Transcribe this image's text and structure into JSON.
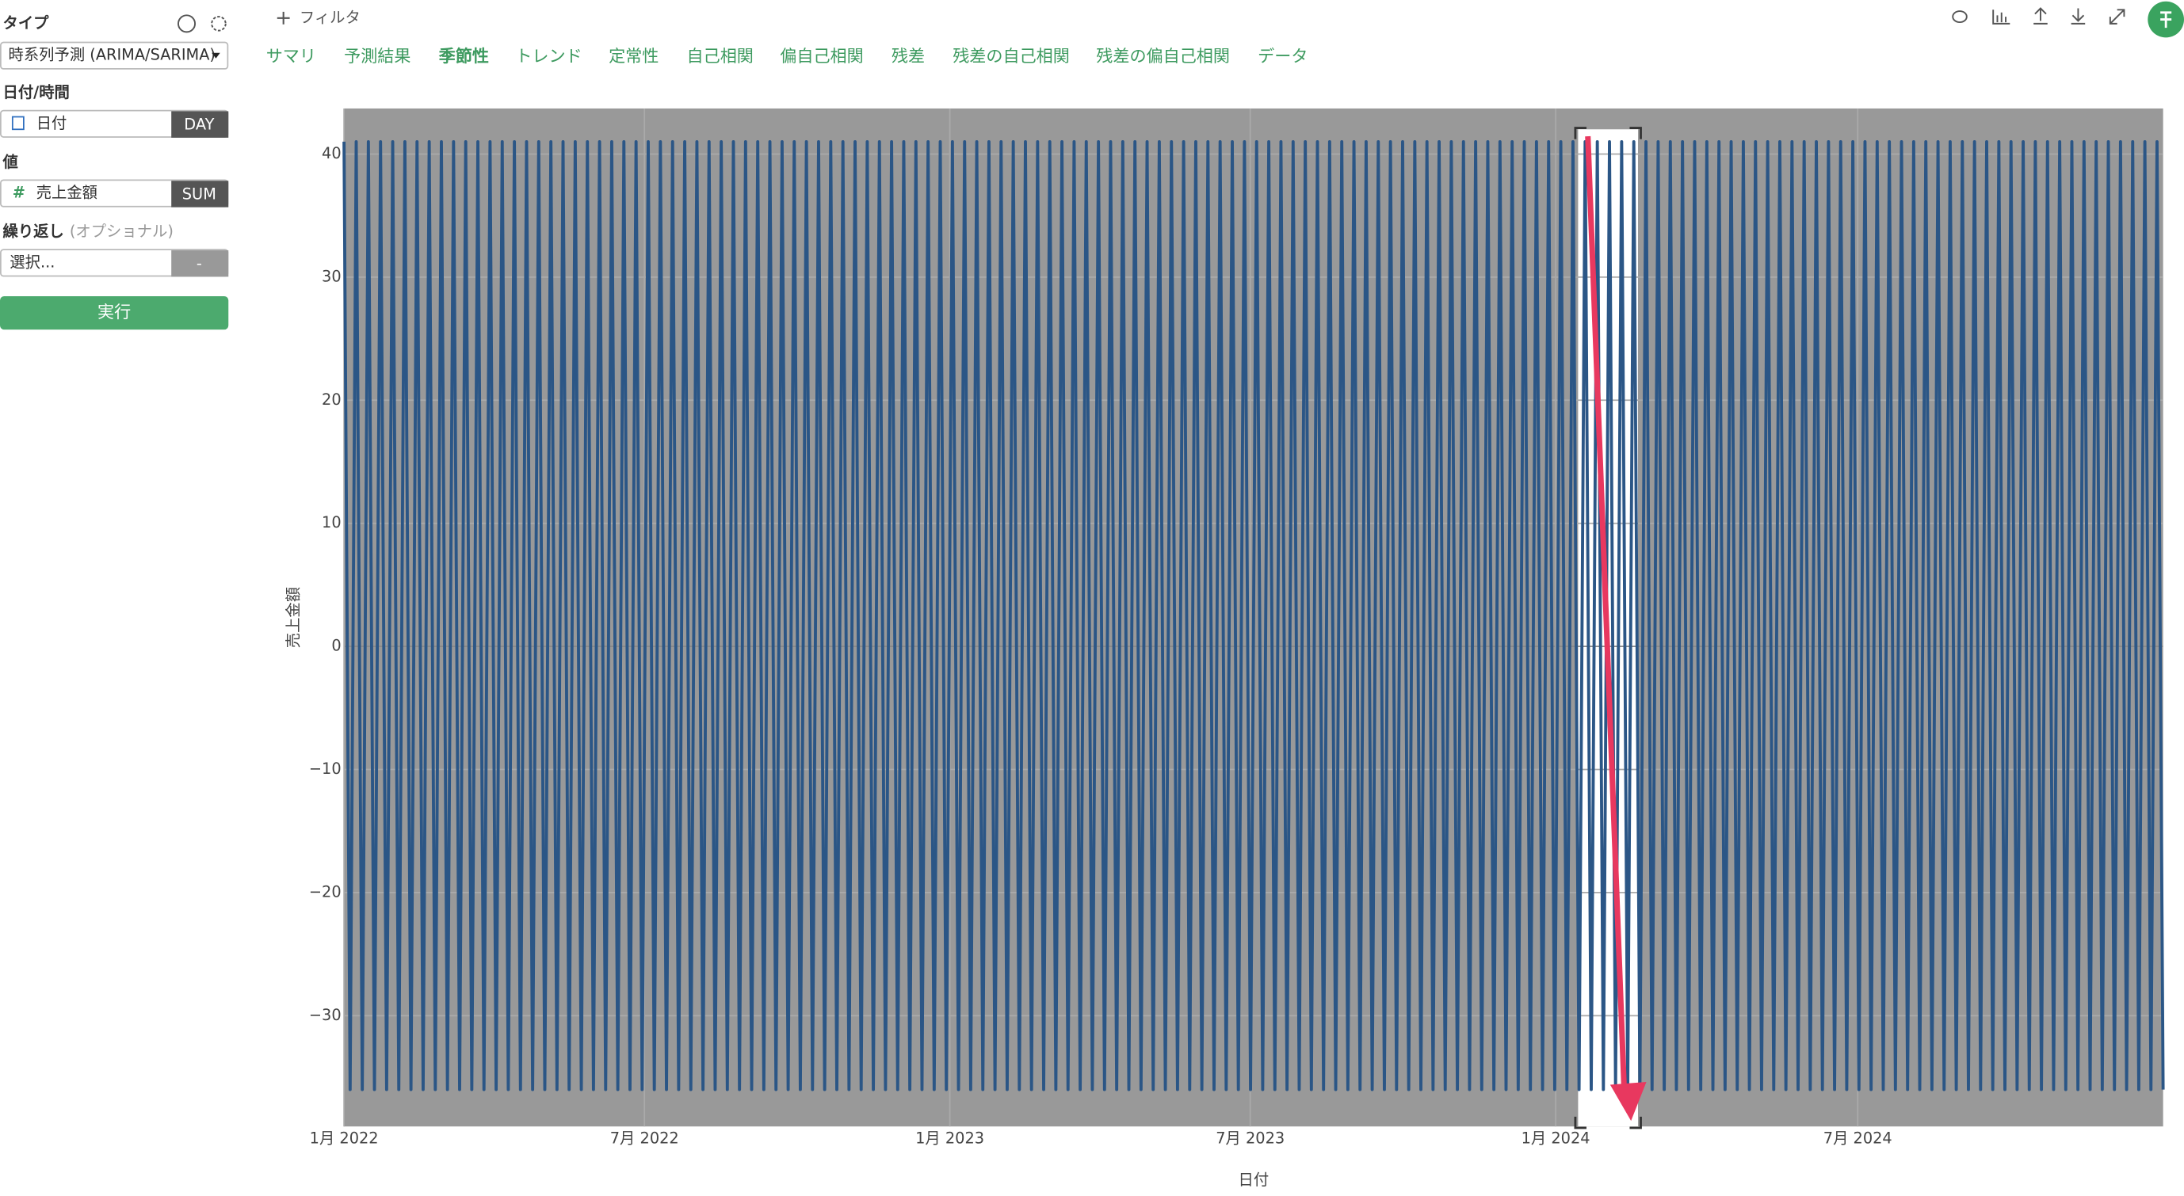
{
  "sidebar": {
    "type_label": "タイプ",
    "type_value": "時系列予測 (ARIMA/SARIMA)",
    "date_label": "日付/時間",
    "date_field": "日付",
    "date_agg": "DAY",
    "value_label": "値",
    "value_field": "売上金額",
    "value_agg": "SUM",
    "repeat_label": "繰り返し",
    "repeat_optional": "(オプショナル)",
    "repeat_placeholder": "選択...",
    "repeat_agg": "-",
    "run_button": "実行"
  },
  "toolbar": {
    "filter": "フィルタ"
  },
  "tabs": [
    "サマリ",
    "予測結果",
    "季節性",
    "トレンド",
    "定常性",
    "自己相関",
    "偏自己相関",
    "残差",
    "残差の自己相関",
    "残差の偏自己相関",
    "データ"
  ],
  "active_tab": 2,
  "chart_data": {
    "type": "line",
    "x_label": "日付",
    "y_label": "売上金額",
    "color": "#2b5686",
    "xlim": [
      "2022-01-01",
      "2025-01-01"
    ],
    "xticks": [
      {
        "value": "2022-01-01",
        "label": "1月 2022"
      },
      {
        "value": "2022-07-01",
        "label": "7月 2022"
      },
      {
        "value": "2023-01-01",
        "label": "1月 2023"
      },
      {
        "value": "2023-07-01",
        "label": "7月 2023"
      },
      {
        "value": "2024-01-01",
        "label": "1月 2024"
      },
      {
        "value": "2024-07-01",
        "label": "7月 2024"
      }
    ],
    "ylim": [
      -39,
      43.7
    ],
    "yticks": [
      {
        "value": -30,
        "label": "−30"
      },
      {
        "value": -20,
        "label": "−20"
      },
      {
        "value": -10,
        "label": "−10"
      },
      0,
      10,
      20,
      30,
      40
    ],
    "grid": true,
    "values": [
      41,
      -36,
      41,
      -36,
      41,
      -36,
      41,
      -36,
      41,
      -36,
      41,
      -36,
      41,
      -36,
      41,
      -36,
      41,
      -36,
      41,
      -36,
      41,
      -36,
      41,
      -36,
      41,
      -36,
      41,
      -36,
      41,
      -36,
      41,
      -36,
      41,
      -36,
      41,
      -36,
      41,
      -36,
      41,
      -36,
      41,
      -36,
      41,
      -36,
      41,
      -36,
      41,
      -36,
      41,
      -36,
      41,
      -36,
      41,
      -36,
      41,
      -36,
      41,
      -36,
      41,
      -36,
      41,
      -36,
      41,
      -36,
      41,
      -36,
      41,
      -36,
      41,
      -36,
      41,
      -36,
      41,
      -36,
      41,
      -36,
      41,
      -36,
      41,
      -36,
      41,
      -36,
      41,
      -36,
      41,
      -36,
      41,
      -36,
      41,
      -36,
      41,
      -36,
      41,
      -36,
      41,
      -36,
      41,
      -36,
      41,
      -36,
      41,
      -36,
      41,
      -36,
      41,
      -36,
      41,
      -36,
      41,
      -36,
      41,
      -36,
      41,
      -36,
      41,
      -36,
      41,
      -36,
      41,
      -36,
      41,
      -36,
      41,
      -36,
      41,
      -36,
      41,
      -36,
      41,
      -36,
      41,
      -36,
      41,
      -36,
      41,
      -36,
      41,
      -36,
      41,
      -36,
      41,
      -36,
      41,
      -36,
      41,
      -36,
      41,
      -36,
      41,
      -36,
      41,
      -36,
      41,
      -36,
      41,
      -36,
      41,
      -36,
      41,
      -36,
      41,
      -36,
      41,
      -36,
      41,
      -36,
      41,
      -36,
      41,
      -36,
      41,
      -36,
      41,
      -36,
      41,
      -36,
      41,
      -36,
      41,
      -36,
      41,
      -36,
      41,
      -36,
      41,
      -36,
      41,
      -36,
      41,
      -36,
      41,
      -36,
      41,
      -36,
      41,
      -36,
      41,
      -36,
      41,
      -36,
      41,
      -36,
      41,
      -36,
      41,
      -36,
      41,
      -36,
      41,
      -36,
      41,
      -36,
      41,
      -36,
      41,
      -36,
      41,
      -36,
      41,
      -36,
      41,
      -36,
      41,
      -36,
      41,
      -36,
      41,
      -36,
      41,
      -36,
      41,
      -36,
      41,
      -36,
      41,
      -36,
      41,
      -36,
      41,
      -36,
      41,
      -36,
      41,
      -36,
      41,
      -36,
      41,
      -36,
      41,
      -36,
      41,
      -36,
      41,
      -36,
      41,
      -36,
      41,
      -36,
      41,
      -36,
      41,
      -36,
      41,
      -36,
      41,
      -36,
      41,
      -36,
      41,
      -36,
      41,
      -36,
      41,
      -36,
      41,
      -36,
      41,
      -36,
      41,
      -36,
      41,
      -36,
      41,
      -36,
      41,
      -36,
      41,
      -36,
      41,
      -36,
      41,
      -36,
      41,
      -36,
      41,
      -36,
      41,
      -36,
      41,
      -36
    ]
  }
}
